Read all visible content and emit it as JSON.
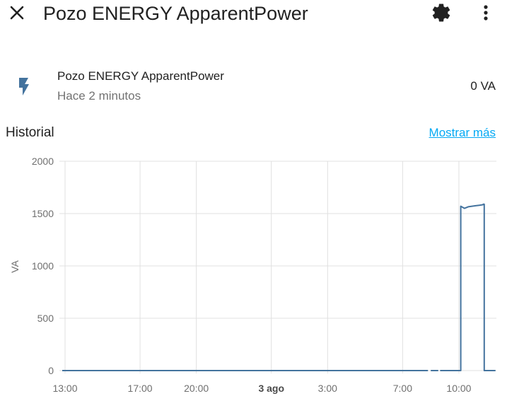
{
  "dialog": {
    "title": "Pozo ENERGY ApparentPower",
    "close_icon": "close-icon",
    "settings_icon": "gear-icon",
    "menu_icon": "more-vertical-icon"
  },
  "entity": {
    "icon": "flash-icon",
    "icon_color": "#44739e",
    "name": "Pozo ENERGY ApparentPower",
    "last_changed": "Hace 2 minutos",
    "state": "0 VA"
  },
  "history": {
    "title": "Historial",
    "more_link": "Mostrar más"
  },
  "chart_data": {
    "type": "line",
    "ylabel": "VA",
    "ylim": [
      0,
      2000
    ],
    "yticks": [
      "0",
      "500",
      "1000",
      "1500",
      "2000"
    ],
    "xlim_hours": [
      12.85,
      36.0
    ],
    "xticks": [
      {
        "label": "13:00",
        "hour": 13,
        "bold": false
      },
      {
        "label": "17:00",
        "hour": 17,
        "bold": false
      },
      {
        "label": "20:00",
        "hour": 20,
        "bold": false
      },
      {
        "label": "3 ago",
        "hour": 24,
        "bold": true
      },
      {
        "label": "3:00",
        "hour": 27,
        "bold": false
      },
      {
        "label": "7:00",
        "hour": 31,
        "bold": false
      },
      {
        "label": "10:00",
        "hour": 34,
        "bold": false
      }
    ],
    "line_color": "#44739e",
    "series": [
      {
        "segments": [
          [
            [
              12.85,
              0
            ],
            [
              32.35,
              0
            ]
          ],
          [
            [
              32.5,
              0
            ],
            [
              32.9,
              0
            ]
          ],
          [
            [
              33.0,
              0
            ],
            [
              34.1,
              0
            ],
            [
              34.1,
              1570
            ],
            [
              34.3,
              1550
            ],
            [
              34.5,
              1565
            ],
            [
              34.7,
              1570
            ],
            [
              34.9,
              1575
            ],
            [
              35.1,
              1580
            ],
            [
              35.3,
              1585
            ],
            [
              35.3,
              1590
            ],
            [
              35.35,
              1590
            ],
            [
              35.35,
              0
            ],
            [
              35.95,
              0
            ]
          ]
        ]
      }
    ]
  }
}
